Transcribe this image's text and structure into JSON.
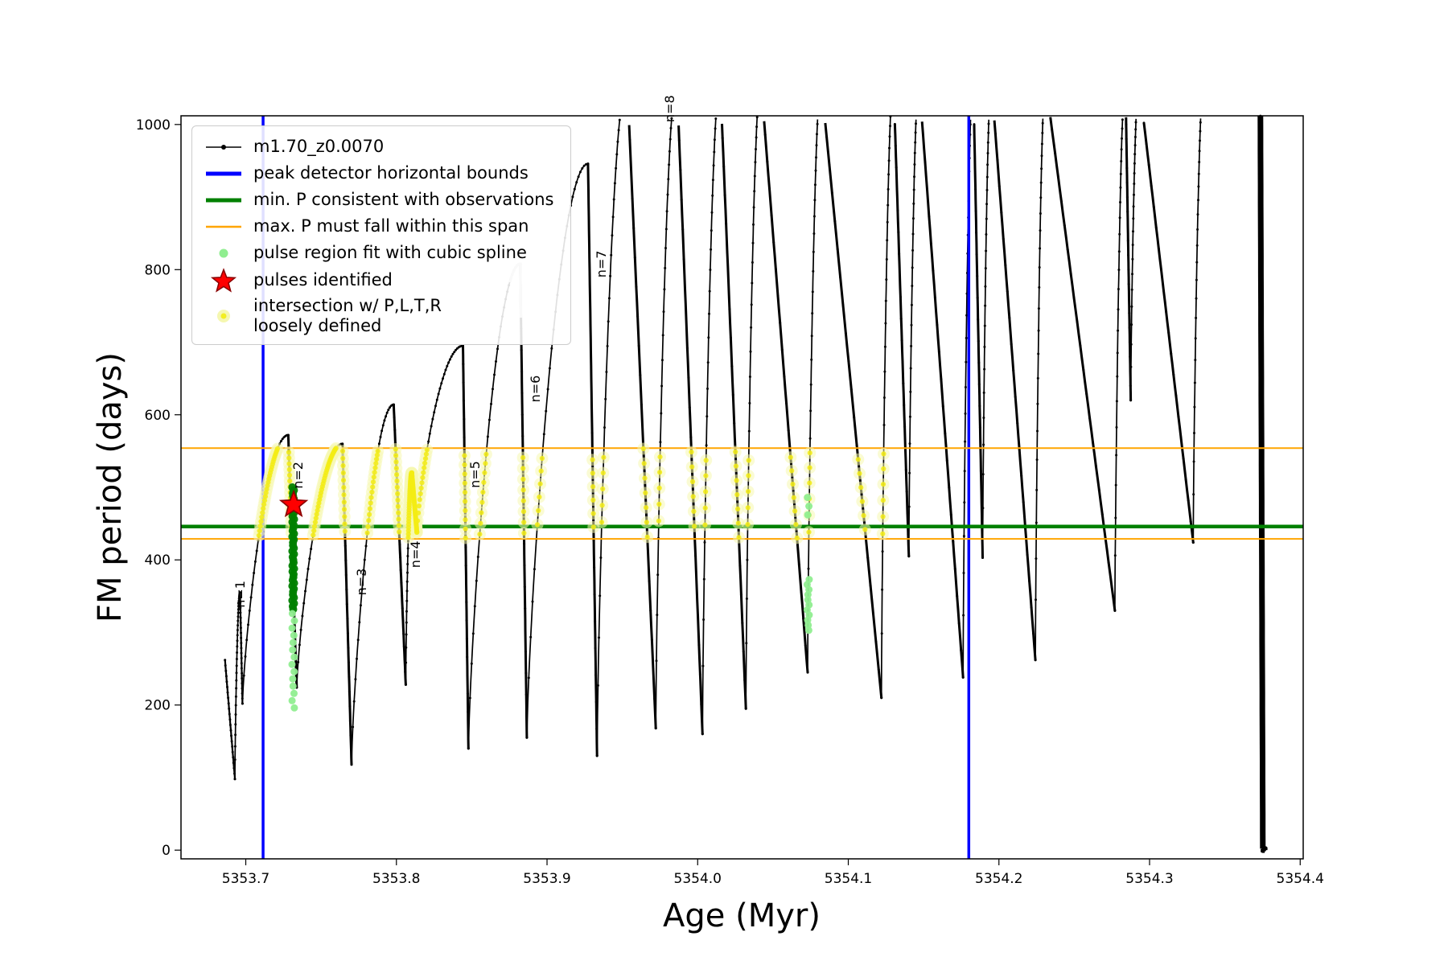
{
  "chart_data": {
    "type": "line",
    "title": "",
    "xlabel": "Age (Myr)",
    "ylabel": "FM period (days)",
    "xlim": [
      5353.657,
      5354.402
    ],
    "ylim": [
      -12,
      1012
    ],
    "x_ticks": {
      "values": [
        5353.7,
        5353.8,
        5353.9,
        5354.0,
        5354.1,
        5354.2,
        5354.3,
        5354.4
      ],
      "labels": [
        "5353.7",
        "5353.8",
        "5353.9",
        "5354.0",
        "5354.1",
        "5354.2",
        "5354.3",
        "5354.4"
      ]
    },
    "y_ticks": {
      "values": [
        0,
        200,
        400,
        600,
        800,
        1000
      ],
      "labels": [
        "0",
        "200",
        "400",
        "600",
        "800",
        "1000"
      ]
    },
    "colors": {
      "series": "#000000",
      "bounds": "#0000ff",
      "min_line": "#008000",
      "span": "#ffa500",
      "spline": "#90ee90",
      "spline_dark": "#008000",
      "star": "#ff0000",
      "star_edge": "#8b0000",
      "intersection_pale": "#f5f7b0",
      "intersection_bright": "#f3ec13",
      "grey": "#c9c9c9"
    },
    "series": {
      "name": "m1.70_z0.0070",
      "knots": [
        [
          5353.6862,
          262
        ],
        [
          5353.6928,
          98
        ],
        [
          5353.6962,
          355
        ],
        [
          5353.6978,
          202
        ],
        [
          5353.7282,
          572
        ],
        [
          5353.7338,
          224
        ],
        [
          5353.7642,
          560
        ],
        [
          5353.7702,
          118
        ],
        [
          5353.7982,
          614
        ],
        [
          5353.8062,
          228
        ],
        [
          5353.8102,
          520
        ],
        [
          5353.8136,
          438
        ],
        [
          5353.8442,
          695
        ],
        [
          5353.8478,
          140
        ],
        [
          5353.8822,
          808
        ],
        [
          5353.8866,
          155
        ],
        [
          5353.9272,
          946
        ],
        [
          5353.9332,
          130
        ],
        [
          5353.9532,
          1060
        ],
        [
          5353.9722,
          168
        ],
        [
          5353.9862,
          1060
        ],
        [
          5354.0032,
          160
        ],
        [
          5354.015,
          1060
        ],
        [
          5354.032,
          195
        ],
        [
          5354.042,
          1060
        ],
        [
          5354.073,
          245
        ],
        [
          5354.082,
          1060
        ],
        [
          5354.122,
          210
        ],
        [
          5354.13,
          1060
        ],
        [
          5354.1402,
          405
        ],
        [
          5354.147,
          1060
        ],
        [
          5354.1762,
          238
        ],
        [
          5354.183,
          1060
        ],
        [
          5354.1892,
          403
        ],
        [
          5354.195,
          1060
        ],
        [
          5354.2242,
          262
        ],
        [
          5354.231,
          1060
        ],
        [
          5354.277,
          330
        ],
        [
          5354.284,
          1060
        ],
        [
          5354.2875,
          620
        ],
        [
          5354.293,
          1060
        ],
        [
          5354.329,
          424
        ],
        [
          5354.336,
          1060
        ],
        [
          5354.3735,
          1060
        ],
        [
          5354.3752,
          2
        ],
        [
          5354.3765,
          0
        ]
      ]
    },
    "grey_segment": {
      "t_range": [
        5353.8752,
        5353.8846
      ],
      "p_min": 720
    },
    "peak_bounds": {
      "x_values": [
        5353.7115,
        5354.18
      ]
    },
    "min_period_line": {
      "y_value": 446
    },
    "max_period_span": {
      "y_values": [
        429,
        554
      ]
    },
    "pulse_intersection": {
      "p_range": [
        430,
        554
      ],
      "t_range": [
        5353.708,
        5354.136
      ]
    },
    "spline_clusters": [
      {
        "t": 5353.7315,
        "p_from": 332,
        "p_to": 500,
        "step": 4,
        "r": 5,
        "jitter": 0.0006,
        "color": "#008000"
      },
      {
        "t": 5353.7315,
        "p_from": 196,
        "p_to": 330,
        "step": 10,
        "r": 4.5,
        "jitter": 0.0008,
        "color": "#90ee90"
      },
      {
        "t": 5354.0734,
        "p_from": 303,
        "p_to": 372,
        "step": 7,
        "r": 4.5,
        "jitter": 0.0007,
        "color": "#90ee90"
      },
      {
        "t": 5354.0734,
        "p_from": 462,
        "p_to": 487,
        "step": 12,
        "r": 4.5,
        "jitter": 0.0005,
        "color": "#90ee90"
      }
    ],
    "pulses_identified": [
      {
        "t": 5353.7318,
        "p": 476
      }
    ],
    "annotations": [
      {
        "label": "n=1",
        "t": 5353.6971,
        "p": 334
      },
      {
        "label": "n=2",
        "t": 5353.7355,
        "p": 498
      },
      {
        "label": "n=3",
        "t": 5353.7777,
        "p": 351
      },
      {
        "label": "n=4",
        "t": 5353.8135,
        "p": 389
      },
      {
        "label": "n=5",
        "t": 5353.853,
        "p": 499
      },
      {
        "label": "n=6",
        "t": 5353.893,
        "p": 617
      },
      {
        "label": "n=7",
        "t": 5353.9368,
        "p": 789
      },
      {
        "label": "n=8",
        "t": 5353.9822,
        "p": 1003
      }
    ],
    "legend": [
      {
        "label": "m1.70_z0.0070"
      },
      {
        "label": "peak detector horizontal bounds"
      },
      {
        "label": "min. P consistent with observations"
      },
      {
        "label": "max. P must fall within this span"
      },
      {
        "label": "pulse region fit with cubic spline"
      },
      {
        "label": "pulses identified"
      },
      {
        "label": "intersection w/ P,L,T,R\nloosely defined"
      }
    ]
  }
}
